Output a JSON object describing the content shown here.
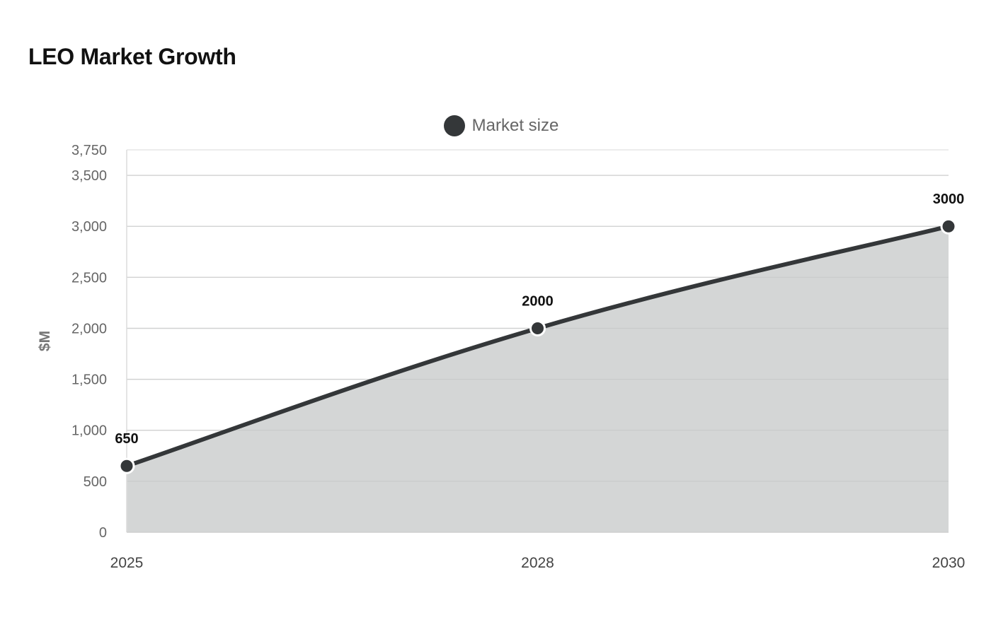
{
  "chart_data": {
    "type": "area",
    "title": "LEO Market Growth",
    "ylabel": "$M",
    "xlabel": "",
    "categories": [
      "2025",
      "2028",
      "2030"
    ],
    "series": [
      {
        "name": "Market size",
        "values": [
          650,
          2000,
          3000
        ],
        "color": "#343739",
        "fill": "#d4d6d6"
      }
    ],
    "ylim": [
      0,
      3750
    ],
    "yticks": [
      0,
      500,
      1000,
      1500,
      2000,
      2500,
      3000,
      3500,
      3750
    ],
    "ytick_labels": [
      "0",
      "500",
      "1,000",
      "1,500",
      "2,000",
      "2,500",
      "3,000",
      "3,500",
      "3,750"
    ],
    "data_labels": [
      "650",
      "2000",
      "3000"
    ],
    "grid": true,
    "legend_position": "top-center"
  }
}
